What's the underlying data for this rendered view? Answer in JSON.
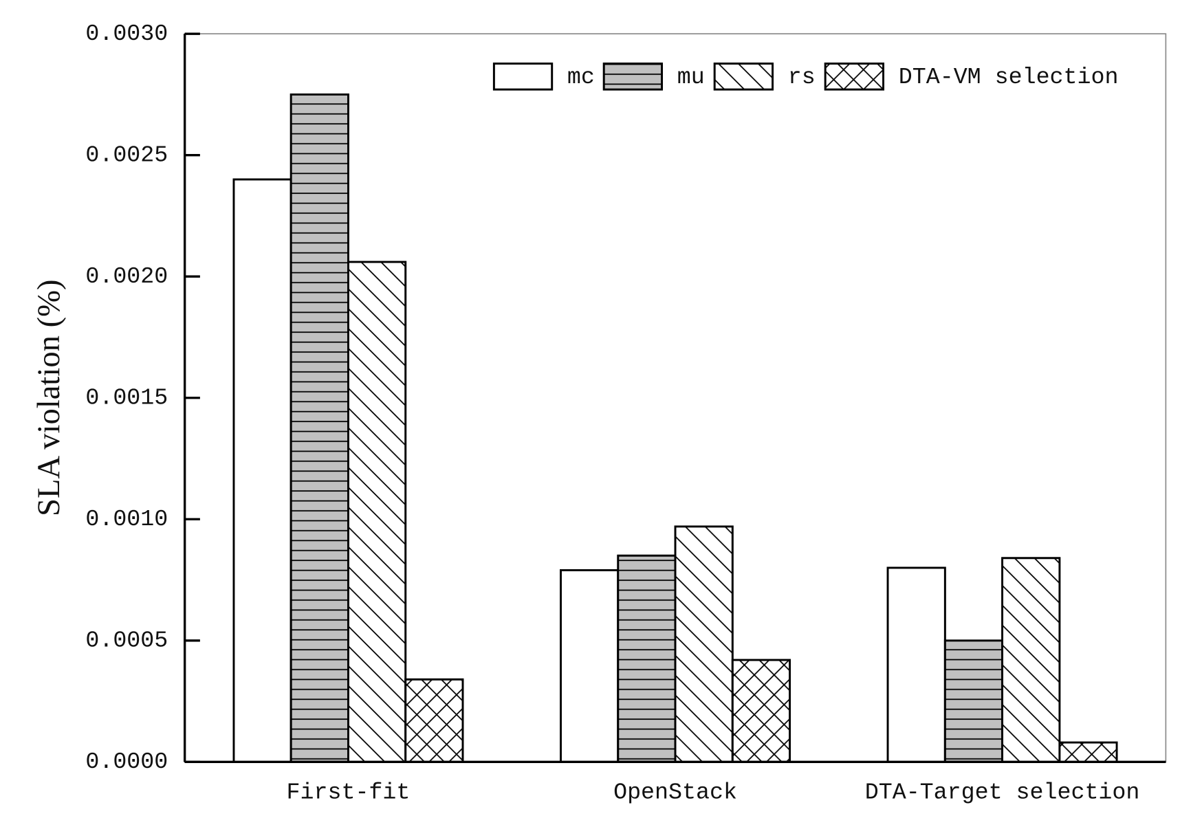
{
  "chart_data": {
    "type": "bar",
    "y_label": "SLA violation (%)",
    "categories": [
      "First-fit",
      "OpenStack",
      "DTA-Target selection"
    ],
    "series": [
      {
        "name": "mc",
        "color": "#ffffff",
        "pattern": "none",
        "values": [
          0.0024,
          0.00079,
          0.0008
        ]
      },
      {
        "name": "mu",
        "color": "#c0c0c0",
        "pattern": "horizontal",
        "values": [
          0.00275,
          0.00085,
          0.0005
        ]
      },
      {
        "name": "rs",
        "color": "#ffffff",
        "pattern": "diagonal",
        "values": [
          0.00206,
          0.00097,
          0.00084
        ]
      },
      {
        "name": "DTA-VM selection",
        "color": "#ffffff",
        "pattern": "crosshatch",
        "values": [
          0.00034,
          0.00042,
          8e-05
        ]
      }
    ],
    "ylim": [
      0,
      0.003
    ],
    "yticks": [
      {
        "value": 0,
        "label": "0.0000"
      },
      {
        "value": 0.0005,
        "label": "0.0005"
      },
      {
        "value": 0.001,
        "label": "0.0010"
      },
      {
        "value": 0.0015,
        "label": "0.0015"
      },
      {
        "value": 0.002,
        "label": "0.0020"
      },
      {
        "value": 0.0025,
        "label": "0.0025"
      },
      {
        "value": 0.003,
        "label": "0.0030"
      }
    ],
    "legend": "upper right"
  }
}
